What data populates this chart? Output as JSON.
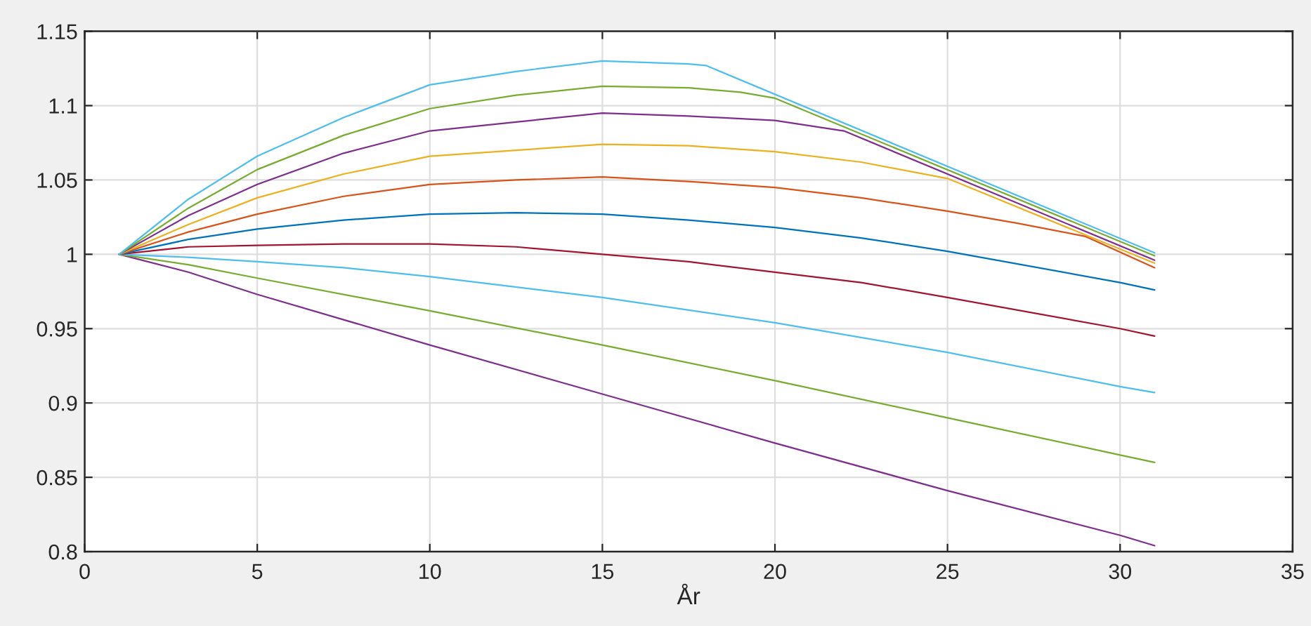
{
  "chart_data": {
    "type": "line",
    "xlabel": "År",
    "xlim": [
      0,
      35
    ],
    "xticks": [
      0,
      5,
      10,
      15,
      20,
      25,
      30,
      35
    ],
    "ylim": [
      0.8,
      1.15
    ],
    "yticks": [
      0.8,
      0.85,
      0.9,
      0.95,
      1,
      1.05,
      1.1,
      1.15
    ],
    "grid": true,
    "series": [
      {
        "color": "#7e2f8e",
        "x": [
          1,
          3,
          5,
          10,
          15,
          20,
          25,
          30,
          31
        ],
        "values": [
          1,
          0.988,
          0.973,
          0.939,
          0.906,
          0.873,
          0.841,
          0.811,
          0.804
        ]
      },
      {
        "color": "#77ac30",
        "x": [
          1,
          3,
          5,
          10,
          15,
          20,
          25,
          30,
          31
        ],
        "values": [
          1,
          0.993,
          0.984,
          0.962,
          0.939,
          0.915,
          0.89,
          0.865,
          0.86
        ]
      },
      {
        "color": "#4dbeee",
        "x": [
          1,
          3,
          5,
          7.5,
          10,
          15,
          20,
          25,
          30,
          31
        ],
        "values": [
          1,
          0.998,
          0.995,
          0.991,
          0.985,
          0.971,
          0.954,
          0.934,
          0.911,
          0.907
        ]
      },
      {
        "color": "#a2142f",
        "x": [
          1,
          3,
          5,
          7.5,
          10,
          12.5,
          15,
          17.5,
          20,
          22.5,
          25,
          30,
          31
        ],
        "values": [
          1,
          1.005,
          1.006,
          1.007,
          1.007,
          1.005,
          1.0,
          0.995,
          0.988,
          0.981,
          0.971,
          0.95,
          0.945
        ]
      },
      {
        "color": "#0072bd",
        "x": [
          1,
          3,
          5,
          7.5,
          10,
          12.5,
          15,
          17.5,
          20,
          22.5,
          25,
          30,
          31
        ],
        "values": [
          1,
          1.01,
          1.017,
          1.023,
          1.027,
          1.028,
          1.027,
          1.023,
          1.018,
          1.011,
          1.002,
          0.981,
          0.976
        ]
      },
      {
        "color": "#d95319",
        "x": [
          1,
          3,
          5,
          7.5,
          10,
          12.5,
          15,
          17.5,
          20,
          22.5,
          25,
          27,
          29,
          31
        ],
        "values": [
          1,
          1.015,
          1.027,
          1.039,
          1.047,
          1.05,
          1.052,
          1.049,
          1.045,
          1.038,
          1.029,
          1.021,
          1.012,
          0.991
        ]
      },
      {
        "color": "#edb120",
        "x": [
          1,
          3,
          5,
          7.5,
          10,
          12.5,
          15,
          17.5,
          20,
          22.5,
          25,
          31
        ],
        "values": [
          1,
          1.02,
          1.038,
          1.054,
          1.066,
          1.07,
          1.074,
          1.073,
          1.069,
          1.062,
          1.051,
          0.994
        ]
      },
      {
        "color": "#7e2f8e",
        "x": [
          1,
          3,
          5,
          7.5,
          10,
          12.5,
          15,
          17.5,
          20,
          22,
          31
        ],
        "values": [
          1,
          1.026,
          1.047,
          1.068,
          1.083,
          1.089,
          1.095,
          1.093,
          1.09,
          1.083,
          0.996
        ]
      },
      {
        "color": "#77ac30",
        "x": [
          1,
          3,
          5,
          7.5,
          10,
          12.5,
          15,
          17.5,
          19,
          20,
          31
        ],
        "values": [
          1,
          1.031,
          1.057,
          1.08,
          1.098,
          1.107,
          1.113,
          1.112,
          1.109,
          1.105,
          0.999
        ]
      },
      {
        "color": "#4dbeee",
        "x": [
          1,
          3,
          5,
          7.5,
          10,
          12.5,
          15,
          17.5,
          18,
          31
        ],
        "values": [
          1,
          1.037,
          1.066,
          1.092,
          1.114,
          1.123,
          1.13,
          1.128,
          1.127,
          1.001
        ]
      }
    ]
  }
}
